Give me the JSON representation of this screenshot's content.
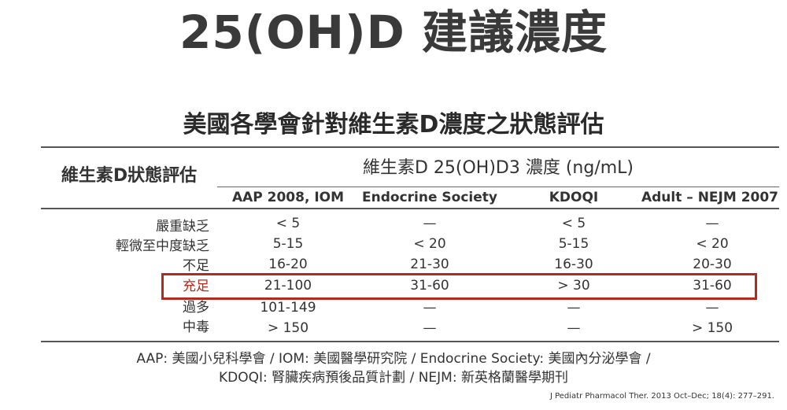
{
  "title": "25(OH)D 建議濃度",
  "table": {
    "title": "美國各學會針對維生素D濃度之狀態評估",
    "status_header": "維生素D狀態評估",
    "concentration_header": "維生素D 25(OH)D3 濃度 (ng/mL)",
    "columns": [
      "AAP 2008, IOM",
      "Endocrine Society",
      "KDOQI",
      "Adult – NEJM 2007"
    ],
    "rows": [
      {
        "label": "嚴重缺乏",
        "values": [
          "< 5",
          "—",
          "< 5",
          "—"
        ]
      },
      {
        "label": "輕微至中度缺乏",
        "values": [
          "5-15",
          "< 20",
          "5-15",
          "< 20"
        ]
      },
      {
        "label": "不足",
        "values": [
          "16-20",
          "21-30",
          "16-30",
          "20-30"
        ]
      },
      {
        "label": "充足",
        "values": [
          "21-100",
          "31-60",
          "> 30",
          "31-60"
        ]
      },
      {
        "label": "過多",
        "values": [
          "101-149",
          "—",
          "—",
          "—"
        ]
      },
      {
        "label": "中毒",
        "values": [
          "> 150",
          "—",
          "—",
          "> 150"
        ]
      }
    ],
    "highlighted_row": "充足"
  },
  "footnote": {
    "line1": "AAP: 美國小兒科學會 / IOM: 美國醫學研究院 / Endocrine Society: 美國內分泌學會 /",
    "line2": "KDOQI: 腎臟疾病預後品質計劃 / NEJM: 新英格蘭醫學期刊"
  },
  "citation": "J Pediatr Pharmacol Ther. 2013 Oct–Dec; 18(4): 277–291.",
  "colors": {
    "highlight": "#b52a1c",
    "text": "#333333",
    "rule": "#555555"
  }
}
